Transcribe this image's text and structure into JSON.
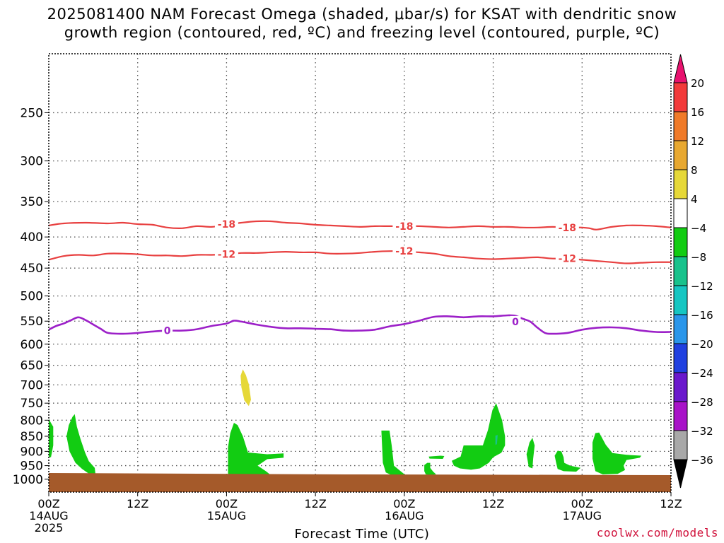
{
  "title": {
    "line1": "2025081400 NAM Forecast Omega (shaded, μbar/s) for KSAT with dendritic snow",
    "line2": "growth region (contoured, red, ºC) and freezing level (contoured, purple, ºC)"
  },
  "credit": "coolwx.com/models",
  "chart_data": {
    "type": "time-height",
    "xlabel": "Forecast Time (UTC)",
    "ylabel": "",
    "x_range_hours": [
      0,
      84
    ],
    "y_range_hPa": [
      200,
      1050
    ],
    "y_ticks": [
      250,
      300,
      350,
      400,
      450,
      500,
      550,
      600,
      650,
      700,
      750,
      800,
      850,
      900,
      950,
      1000
    ],
    "x_ticks": [
      {
        "hour": 0,
        "lines": [
          "00Z",
          "14AUG",
          "2025"
        ]
      },
      {
        "hour": 12,
        "lines": [
          "12Z"
        ]
      },
      {
        "hour": 24,
        "lines": [
          "00Z",
          "15AUG"
        ]
      },
      {
        "hour": 36,
        "lines": [
          "12Z"
        ]
      },
      {
        "hour": 48,
        "lines": [
          "00Z",
          "16AUG"
        ]
      },
      {
        "hour": 60,
        "lines": [
          "12Z"
        ]
      },
      {
        "hour": 72,
        "lines": [
          "00Z",
          "17AUG"
        ]
      },
      {
        "hour": 84,
        "lines": [
          "12Z"
        ]
      }
    ],
    "grid": true,
    "colorbar": {
      "levels": [
        "20",
        "16",
        "12",
        "8",
        "4",
        "−4",
        "−8",
        "−12",
        "−16",
        "−20",
        "−24",
        "−28",
        "−32",
        "−36"
      ],
      "colors": [
        "#e8126e",
        "#f23a3a",
        "#f07a28",
        "#e8a830",
        "#e6d838",
        "#ffffff",
        "#12cc12",
        "#18c28c",
        "#16c6c2",
        "#2a96ea",
        "#2040e0",
        "#6a18cc",
        "#a812c8",
        "#a8a8a8",
        "#000000"
      ]
    },
    "contours": [
      {
        "name": "-18",
        "color": "#e84040",
        "points": [
          [
            0,
            383
          ],
          [
            2,
            380
          ],
          [
            5,
            379
          ],
          [
            8,
            380
          ],
          [
            10,
            379
          ],
          [
            12,
            381
          ],
          [
            14,
            382
          ],
          [
            16,
            386
          ],
          [
            18,
            387
          ],
          [
            20,
            384
          ],
          [
            22,
            385
          ],
          [
            24,
            382
          ],
          [
            26,
            379
          ],
          [
            28,
            377
          ],
          [
            30,
            377
          ],
          [
            32,
            379
          ],
          [
            34,
            380
          ],
          [
            36,
            382
          ],
          [
            38,
            383
          ],
          [
            40,
            384
          ],
          [
            42,
            385
          ],
          [
            44,
            384
          ],
          [
            46,
            384
          ],
          [
            48,
            384
          ],
          [
            50,
            384
          ],
          [
            52,
            385
          ],
          [
            54,
            386
          ],
          [
            56,
            385
          ],
          [
            58,
            384
          ],
          [
            60,
            385
          ],
          [
            62,
            385
          ],
          [
            64,
            386
          ],
          [
            66,
            386
          ],
          [
            68,
            385
          ],
          [
            70,
            386
          ],
          [
            72,
            386
          ],
          [
            73,
            387
          ],
          [
            74,
            389
          ],
          [
            76,
            385
          ],
          [
            78,
            383
          ],
          [
            80,
            383
          ],
          [
            82,
            384
          ],
          [
            84,
            386
          ]
        ],
        "labels": [
          {
            "x": 24,
            "y": 381
          },
          {
            "x": 48,
            "y": 384
          },
          {
            "x": 70,
            "y": 386
          }
        ]
      },
      {
        "name": "-12",
        "color": "#e84040",
        "points": [
          [
            0,
            436
          ],
          [
            2,
            430
          ],
          [
            4,
            428
          ],
          [
            6,
            429
          ],
          [
            8,
            426
          ],
          [
            10,
            426
          ],
          [
            12,
            427
          ],
          [
            14,
            429
          ],
          [
            16,
            429
          ],
          [
            18,
            430
          ],
          [
            20,
            428
          ],
          [
            22,
            428
          ],
          [
            24,
            427
          ],
          [
            26,
            425
          ],
          [
            28,
            425
          ],
          [
            30,
            424
          ],
          [
            32,
            423
          ],
          [
            34,
            424
          ],
          [
            36,
            424
          ],
          [
            38,
            426
          ],
          [
            40,
            426
          ],
          [
            42,
            425
          ],
          [
            44,
            423
          ],
          [
            46,
            422
          ],
          [
            48,
            422
          ],
          [
            50,
            424
          ],
          [
            52,
            426
          ],
          [
            54,
            430
          ],
          [
            56,
            432
          ],
          [
            58,
            434
          ],
          [
            60,
            435
          ],
          [
            62,
            434
          ],
          [
            64,
            433
          ],
          [
            66,
            432
          ],
          [
            68,
            434
          ],
          [
            70,
            434
          ],
          [
            72,
            436
          ],
          [
            74,
            438
          ],
          [
            76,
            440
          ],
          [
            78,
            442
          ],
          [
            80,
            441
          ],
          [
            82,
            440
          ],
          [
            84,
            440
          ]
        ],
        "labels": [
          {
            "x": 24,
            "y": 427
          },
          {
            "x": 48,
            "y": 422
          },
          {
            "x": 70,
            "y": 434
          }
        ]
      },
      {
        "name": "0",
        "color": "#9c20c8",
        "points": [
          [
            0,
            568
          ],
          [
            1,
            560
          ],
          [
            2,
            555
          ],
          [
            3,
            548
          ],
          [
            4,
            542
          ],
          [
            5,
            548
          ],
          [
            6,
            557
          ],
          [
            7,
            566
          ],
          [
            8,
            575
          ],
          [
            10,
            577
          ],
          [
            12,
            575
          ],
          [
            14,
            572
          ],
          [
            16,
            570
          ],
          [
            18,
            570
          ],
          [
            20,
            567
          ],
          [
            22,
            560
          ],
          [
            24,
            555
          ],
          [
            25,
            549
          ],
          [
            26,
            551
          ],
          [
            28,
            557
          ],
          [
            30,
            562
          ],
          [
            32,
            565
          ],
          [
            34,
            565
          ],
          [
            36,
            566
          ],
          [
            38,
            567
          ],
          [
            40,
            570
          ],
          [
            42,
            570
          ],
          [
            44,
            568
          ],
          [
            46,
            561
          ],
          [
            48,
            556
          ],
          [
            50,
            549
          ],
          [
            52,
            541
          ],
          [
            54,
            540
          ],
          [
            56,
            542
          ],
          [
            58,
            540
          ],
          [
            60,
            540
          ],
          [
            62,
            538
          ],
          [
            63,
            539
          ],
          [
            64,
            545
          ],
          [
            65,
            551
          ],
          [
            66,
            564
          ],
          [
            67,
            575
          ],
          [
            68,
            577
          ],
          [
            70,
            575
          ],
          [
            72,
            568
          ],
          [
            74,
            564
          ],
          [
            76,
            563
          ],
          [
            78,
            565
          ],
          [
            80,
            570
          ],
          [
            82,
            573
          ],
          [
            84,
            573
          ]
        ],
        "labels": [
          {
            "x": 16,
            "y": 570
          },
          {
            "x": 63,
            "y": 551
          }
        ]
      }
    ],
    "shaded_regions": [
      {
        "level": "4..8",
        "color": "#e6d838",
        "points": [
          [
            26.2,
            660
          ],
          [
            26.6,
            674
          ],
          [
            27.0,
            698
          ],
          [
            27.3,
            740
          ],
          [
            27.0,
            758
          ],
          [
            26.4,
            742
          ],
          [
            26.0,
            706
          ],
          [
            25.9,
            676
          ]
        ]
      },
      {
        "level": "-4..-8",
        "color": "#12cc12",
        "points": [
          [
            0,
            797
          ],
          [
            0.6,
            820
          ],
          [
            0.6,
            880
          ],
          [
            0.3,
            920
          ],
          [
            0,
            920
          ]
        ]
      },
      {
        "level": "-4..-8",
        "color": "#12cc12",
        "points": [
          [
            2.7,
            815
          ],
          [
            3.2,
            790
          ],
          [
            3.5,
            782
          ],
          [
            3.8,
            820
          ],
          [
            4.3,
            860
          ],
          [
            4.9,
            904
          ],
          [
            5.4,
            934
          ],
          [
            6.2,
            958
          ],
          [
            6.3,
            980
          ],
          [
            5.5,
            981
          ],
          [
            4.5,
            962
          ],
          [
            3.6,
            940
          ],
          [
            2.8,
            900
          ],
          [
            2.4,
            850
          ]
        ]
      },
      {
        "level": "-4..-8",
        "color": "#12cc12",
        "points": [
          [
            24.2,
            886
          ],
          [
            24.5,
            840
          ],
          [
            25.0,
            808
          ],
          [
            25.5,
            815
          ],
          [
            26.2,
            850
          ],
          [
            26.9,
            904
          ],
          [
            29.5,
            910
          ],
          [
            31.7,
            907
          ],
          [
            31.7,
            922
          ],
          [
            29.5,
            927
          ],
          [
            28.2,
            950
          ],
          [
            29.3,
            970
          ],
          [
            29.9,
            983
          ],
          [
            25.5,
            985
          ],
          [
            24.2,
            980
          ]
        ]
      },
      {
        "level": "-4..-8",
        "color": "#12cc12",
        "points": [
          [
            44.9,
            832
          ],
          [
            46.0,
            832
          ],
          [
            46.3,
            880
          ],
          [
            46.6,
            950
          ],
          [
            47.4,
            968
          ],
          [
            48.3,
            988
          ],
          [
            46.3,
            985
          ],
          [
            45.5,
            975
          ],
          [
            45.1,
            940
          ]
        ]
      },
      {
        "level": "-4..-8",
        "color": "#12cc12",
        "points": [
          [
            50.7,
            948
          ],
          [
            51.1,
            940
          ],
          [
            51.5,
            940
          ],
          [
            51.5,
            958
          ],
          [
            51.9,
            972
          ],
          [
            52.3,
            982
          ],
          [
            51.5,
            985
          ],
          [
            50.9,
            982
          ],
          [
            50.7,
            970
          ]
        ]
      },
      {
        "level": "-4..-8",
        "color": "#12cc12",
        "points": [
          [
            51.3,
            918
          ],
          [
            52.9,
            915
          ],
          [
            53.4,
            916
          ],
          [
            53.2,
            926
          ],
          [
            51.4,
            925
          ]
        ]
      },
      {
        "level": "-4..-8",
        "color": "#12cc12",
        "points": [
          [
            54.4,
            933
          ],
          [
            55.6,
            918
          ],
          [
            56.0,
            880
          ],
          [
            58.6,
            880
          ],
          [
            59.3,
            830
          ],
          [
            59.9,
            770
          ],
          [
            60.4,
            750
          ],
          [
            61.2,
            800
          ],
          [
            61.6,
            850
          ],
          [
            61.6,
            880
          ],
          [
            61.1,
            905
          ],
          [
            60.0,
            920
          ],
          [
            59.4,
            940
          ],
          [
            58.2,
            960
          ],
          [
            57.0,
            965
          ],
          [
            55.5,
            960
          ],
          [
            54.7,
            950
          ]
        ]
      },
      {
        "level": "-4..-8",
        "color": "#12cc12",
        "points": [
          [
            64.9,
            870
          ],
          [
            65.3,
            855
          ],
          [
            65.6,
            880
          ],
          [
            65.4,
            925
          ],
          [
            65.3,
            960
          ],
          [
            64.8,
            955
          ],
          [
            64.5,
            910
          ]
        ]
      },
      {
        "level": "-4..-8",
        "color": "#12cc12",
        "points": [
          [
            68.3,
            915
          ],
          [
            68.7,
            898
          ],
          [
            69.2,
            900
          ],
          [
            69.5,
            920
          ],
          [
            69.6,
            940
          ],
          [
            70.4,
            950
          ],
          [
            71.8,
            958
          ],
          [
            71.2,
            972
          ],
          [
            69.5,
            970
          ],
          [
            68.7,
            962
          ],
          [
            68.5,
            940
          ]
        ]
      },
      {
        "level": "-4..-8",
        "color": "#12cc12",
        "points": [
          [
            73.4,
            870
          ],
          [
            73.8,
            840
          ],
          [
            74.3,
            838
          ],
          [
            75.2,
            878
          ],
          [
            76.1,
            906
          ],
          [
            78.0,
            912
          ],
          [
            80.0,
            915
          ],
          [
            79.8,
            922
          ],
          [
            78.0,
            930
          ],
          [
            77.6,
            950
          ],
          [
            77.8,
            966
          ],
          [
            76.8,
            980
          ],
          [
            74.8,
            982
          ],
          [
            73.8,
            970
          ],
          [
            73.4,
            925
          ]
        ]
      }
    ],
    "highlight_regions": [
      {
        "level": "-8..-12",
        "color": "#18c28c",
        "points": [
          [
            60.3,
            848
          ],
          [
            60.6,
            846
          ],
          [
            60.5,
            876
          ],
          [
            60.3,
            878
          ]
        ]
      }
    ],
    "terrain": {
      "color": "#a55a2a",
      "top_hPa": 982,
      "label": "ground"
    }
  }
}
